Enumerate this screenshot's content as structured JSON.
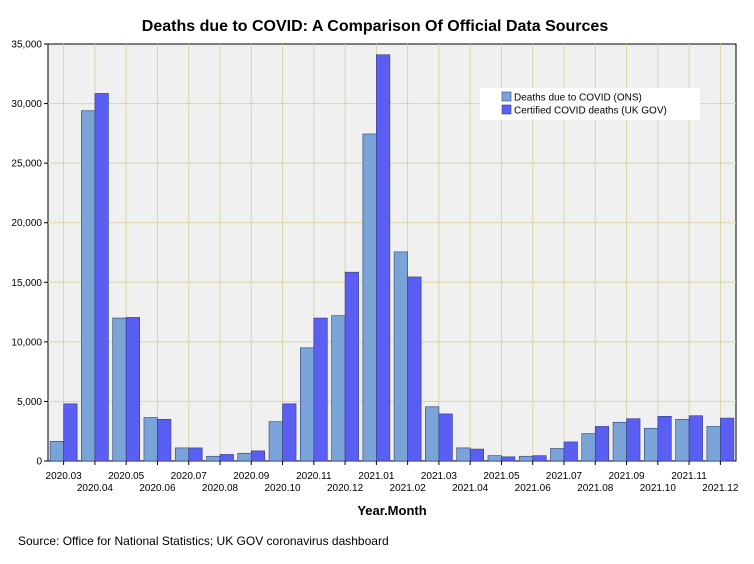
{
  "chart_data": {
    "type": "bar",
    "title": "Deaths due to COVID: A Comparison Of Official Data Sources",
    "xlabel": "Year.Month",
    "ylabel": "",
    "ylim": [
      0,
      35000
    ],
    "yticks": [
      0,
      5000,
      10000,
      15000,
      20000,
      25000,
      30000,
      35000
    ],
    "ytick_labels": [
      "0",
      "5,000",
      "10,000",
      "15,000",
      "20,000",
      "25,000",
      "30,000",
      "35,000"
    ],
    "grid": true,
    "legend_position": "top-right",
    "categories": [
      "2020.03",
      "2020.04",
      "2020.05",
      "2020.06",
      "2020.07",
      "2020.08",
      "2020.09",
      "2020.10",
      "2020.11",
      "2020.12",
      "2021.01",
      "2021.02",
      "2021.03",
      "2021.04",
      "2021.05",
      "2021.06",
      "2021.07",
      "2021.08",
      "2021.09",
      "2021.10",
      "2021.11",
      "2021.12"
    ],
    "series": [
      {
        "name": "Deaths due to COVID (ONS)",
        "color": "#7aa3d8",
        "values": [
          1650,
          29400,
          12000,
          3650,
          1100,
          400,
          650,
          3300,
          9500,
          12200,
          27450,
          17550,
          4550,
          1100,
          450,
          400,
          1050,
          2300,
          3250,
          2750,
          3500,
          2900
        ]
      },
      {
        "name": "Certified COVID deaths (UK GOV)",
        "color": "#5a5ef2",
        "values": [
          4800,
          30850,
          12050,
          3500,
          1100,
          550,
          850,
          4800,
          12000,
          15850,
          34100,
          15450,
          3950,
          1000,
          350,
          450,
          1600,
          2900,
          3550,
          3750,
          3800,
          3600
        ]
      }
    ]
  },
  "source_text": "Source: Office for National Statistics; UK GOV coronavirus dashboard"
}
